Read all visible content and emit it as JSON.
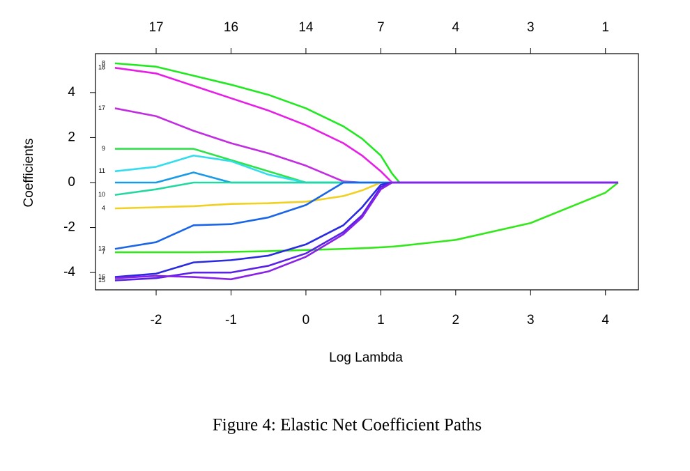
{
  "chart_data": {
    "type": "line",
    "x_label": "Log Lambda",
    "y_label": "Coefficients",
    "caption": "Figure 4: Elastic Net Coefficient Paths",
    "xlim": [
      -2.81,
      4.44
    ],
    "ylim": [
      -4.77,
      5.73
    ],
    "xticks": [
      -2,
      -1,
      0,
      1,
      2,
      3,
      4
    ],
    "yticks": [
      -4,
      -2,
      0,
      2,
      4
    ],
    "x2ticks": [
      {
        "value": -2,
        "label": "17"
      },
      {
        "value": -1,
        "label": "16"
      },
      {
        "value": 0,
        "label": "14"
      },
      {
        "value": 1,
        "label": "7"
      },
      {
        "value": 2,
        "label": "4"
      },
      {
        "value": 3,
        "label": "3"
      },
      {
        "value": 4,
        "label": "1"
      }
    ],
    "x": [
      -2.55,
      -2,
      -1.5,
      -1,
      -0.5,
      0,
      0.5,
      0.75,
      1,
      1.15,
      1.25,
      2,
      3,
      4,
      4.17
    ],
    "series": [
      {
        "name": "8",
        "color": "#22e822",
        "values": [
          5.3,
          5.15,
          4.75,
          4.35,
          3.9,
          3.3,
          2.5,
          1.95,
          1.2,
          0.4,
          0,
          0,
          0,
          0,
          0
        ]
      },
      {
        "name": "18",
        "color": "#e61ee6",
        "values": [
          5.1,
          4.85,
          4.3,
          3.75,
          3.2,
          2.55,
          1.75,
          1.2,
          0.5,
          0,
          0,
          0,
          0,
          0,
          0
        ]
      },
      {
        "name": "17",
        "color": "#c02ee0",
        "values": [
          3.3,
          2.95,
          2.3,
          1.75,
          1.3,
          0.75,
          0.05,
          0,
          0,
          0,
          0,
          0,
          0,
          0,
          0
        ]
      },
      {
        "name": "9",
        "color": "#2ee24a",
        "values": [
          1.5,
          1.5,
          1.5,
          1.0,
          0.5,
          0,
          0,
          0,
          0,
          0,
          0,
          0,
          0,
          0,
          0
        ]
      },
      {
        "name": "11",
        "color": "#33ddee",
        "values": [
          0.5,
          0.7,
          1.2,
          0.95,
          0.35,
          0,
          0,
          0,
          0,
          0,
          0,
          0,
          0,
          0,
          0
        ]
      },
      {
        "color": "#1a9ae6",
        "values": [
          0,
          0,
          0.45,
          0,
          0,
          0,
          0,
          0,
          0,
          0,
          0,
          0,
          0,
          0,
          0
        ]
      },
      {
        "name": "10",
        "color": "#22d8a0",
        "values": [
          -0.55,
          -0.3,
          0,
          0,
          0,
          0,
          0,
          0,
          0,
          0,
          0,
          0,
          0,
          0,
          0
        ]
      },
      {
        "name": "4",
        "color": "#f0d020",
        "values": [
          -1.15,
          -1.1,
          -1.05,
          -0.95,
          -0.92,
          -0.85,
          -0.6,
          -0.35,
          0,
          0,
          0,
          0,
          0,
          0,
          0
        ]
      },
      {
        "name": "13",
        "color": "#1a66e6",
        "values": [
          -2.95,
          -2.65,
          -1.9,
          -1.85,
          -1.55,
          -1.0,
          0,
          0,
          0,
          0,
          0,
          0,
          0,
          0,
          0
        ]
      },
      {
        "name": "7",
        "color": "#33e81a",
        "values": [
          -3.1,
          -3.1,
          -3.1,
          -3.08,
          -3.05,
          -3.0,
          -2.95,
          -2.92,
          -2.88,
          -2.85,
          -2.82,
          -2.55,
          -1.8,
          -0.45,
          0
        ]
      },
      {
        "name": "16",
        "color": "#2a2ae0",
        "values": [
          -4.2,
          -4.05,
          -3.55,
          -3.45,
          -3.25,
          -2.75,
          -1.9,
          -1.1,
          -0.1,
          0,
          0,
          0,
          0,
          0,
          0
        ]
      },
      {
        "name": "15",
        "color": "#5a22e6",
        "values": [
          -4.35,
          -4.25,
          -4.0,
          -4.0,
          -3.7,
          -3.15,
          -2.2,
          -1.45,
          -0.2,
          0,
          0,
          0,
          0,
          0,
          0
        ]
      },
      {
        "color": "#8822e6",
        "values": [
          -4.25,
          -4.15,
          -4.2,
          -4.3,
          -3.95,
          -3.3,
          -2.3,
          -1.55,
          -0.3,
          0,
          0,
          0,
          0,
          0,
          0
        ]
      }
    ]
  }
}
